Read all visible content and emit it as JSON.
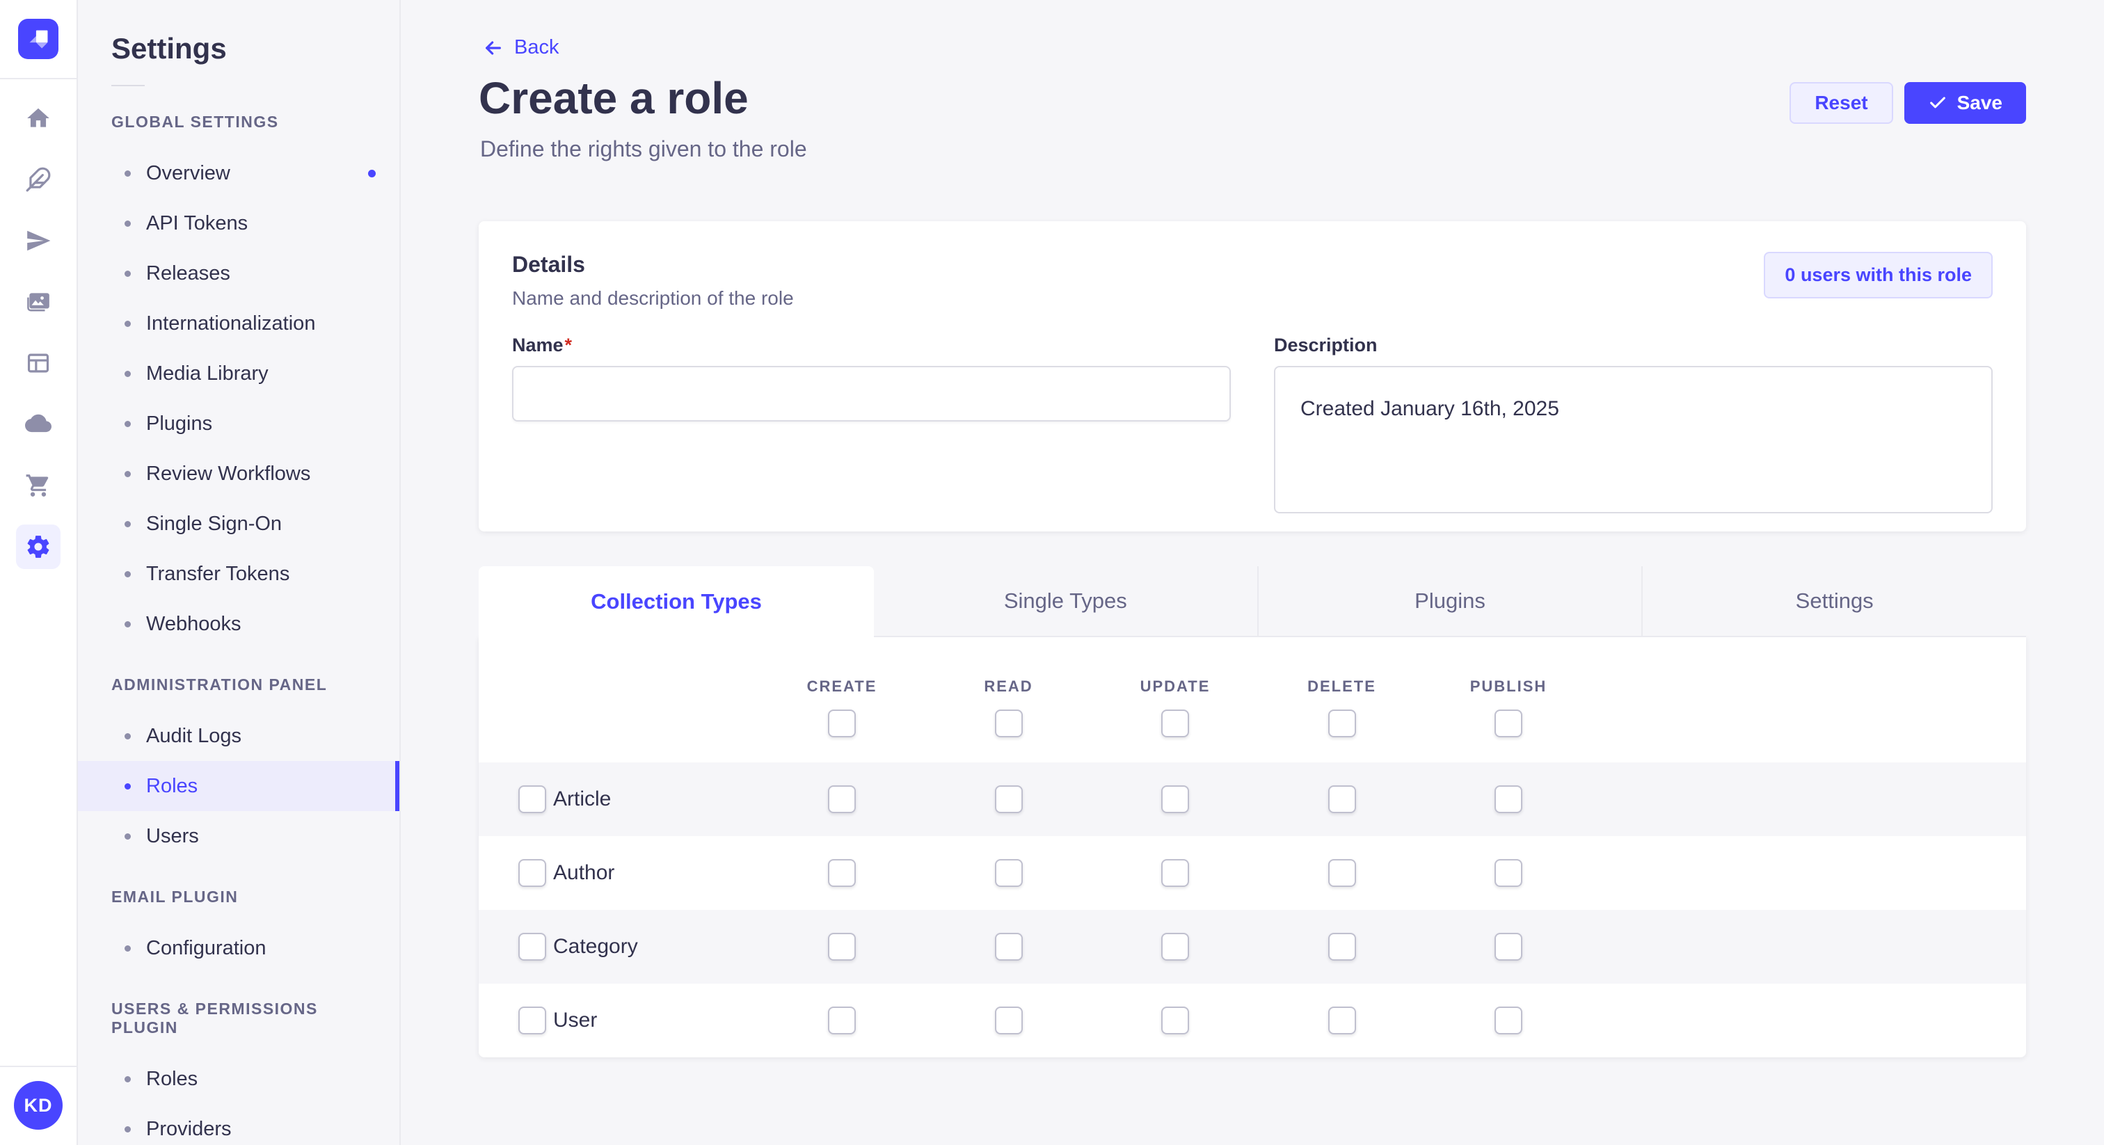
{
  "colors": {
    "primary": "#4945ff",
    "primary_light_bg": "#f0f0ff",
    "primary_border": "#d9d8ff",
    "active_item_bg": "#edecfc",
    "text_dark": "#32324d",
    "text_muted": "#666687",
    "icon_gray": "#8e8ea9",
    "divider": "#eaeaef",
    "input_border": "#dcdce4",
    "checkbox_border": "#c0c0cf",
    "row_stripe": "#f6f6f9",
    "required_red": "#d02b20"
  },
  "rail": {
    "logo": "strapi-logo",
    "icons": [
      {
        "name": "home",
        "active": false
      },
      {
        "name": "feather",
        "active": false
      },
      {
        "name": "paper-plane",
        "active": false
      },
      {
        "name": "media-library",
        "active": false
      },
      {
        "name": "content-type-builder",
        "active": false
      },
      {
        "name": "cloud",
        "active": false
      },
      {
        "name": "marketplace-cart",
        "active": false
      },
      {
        "name": "settings-gear",
        "active": true
      }
    ],
    "avatar_initials": "KD"
  },
  "sidebar": {
    "title": "Settings",
    "sections": [
      {
        "label": "GLOBAL SETTINGS",
        "items": [
          {
            "label": "Overview",
            "notification": true
          },
          {
            "label": "API Tokens"
          },
          {
            "label": "Releases"
          },
          {
            "label": "Internationalization"
          },
          {
            "label": "Media Library"
          },
          {
            "label": "Plugins"
          },
          {
            "label": "Review Workflows"
          },
          {
            "label": "Single Sign-On"
          },
          {
            "label": "Transfer Tokens"
          },
          {
            "label": "Webhooks"
          }
        ]
      },
      {
        "label": "ADMINISTRATION PANEL",
        "items": [
          {
            "label": "Audit Logs"
          },
          {
            "label": "Roles",
            "active": true
          },
          {
            "label": "Users"
          }
        ]
      },
      {
        "label": "EMAIL PLUGIN",
        "items": [
          {
            "label": "Configuration"
          }
        ]
      },
      {
        "label": "USERS & PERMISSIONS PLUGIN",
        "items": [
          {
            "label": "Roles"
          },
          {
            "label": "Providers"
          }
        ]
      }
    ]
  },
  "header": {
    "back_label": "Back",
    "title": "Create a role",
    "subtitle": "Define the rights given to the role",
    "reset_label": "Reset",
    "save_label": "Save"
  },
  "details": {
    "title": "Details",
    "subtitle": "Name and description of the role",
    "users_button_label": "0 users with this role",
    "name_label": "Name",
    "name_required": "*",
    "name_value": "",
    "description_label": "Description",
    "description_value": "Created January 16th, 2025"
  },
  "permissions": {
    "tabs": [
      {
        "label": "Collection Types",
        "active": true
      },
      {
        "label": "Single Types",
        "active": false
      },
      {
        "label": "Plugins",
        "active": false
      },
      {
        "label": "Settings",
        "active": false
      }
    ],
    "columns": [
      "CREATE",
      "READ",
      "UPDATE",
      "DELETE",
      "PUBLISH"
    ],
    "rows": [
      {
        "label": "Article"
      },
      {
        "label": "Author"
      },
      {
        "label": "Category"
      },
      {
        "label": "User"
      }
    ]
  },
  "help": {
    "icon": "question-mark"
  }
}
